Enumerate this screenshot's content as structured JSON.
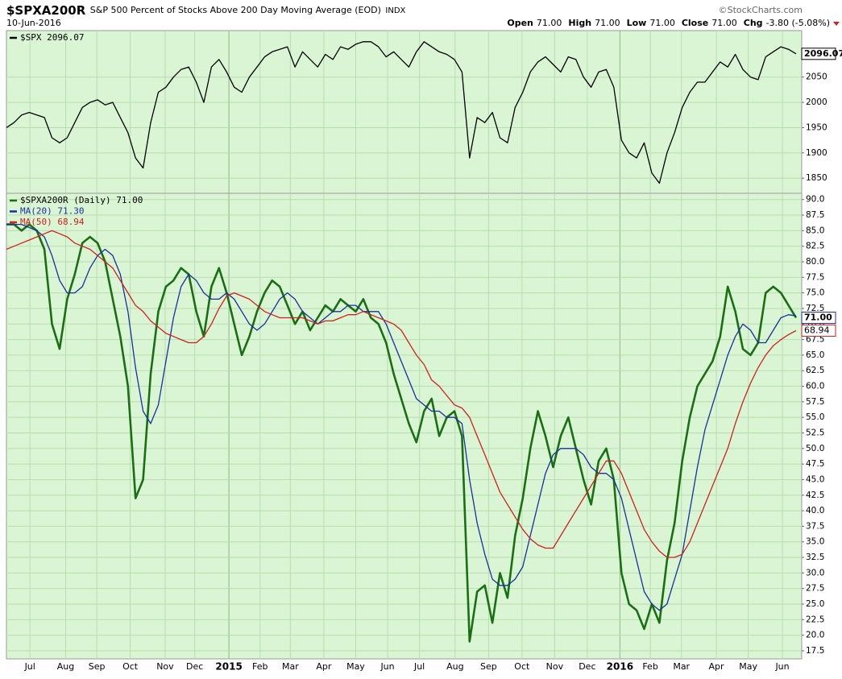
{
  "header": {
    "symbol": "$SPXA200R",
    "description": "S&P 500 Percent of Stocks Above 200 Day Moving Average (EOD)",
    "exchange": "INDX",
    "source": "©StockCharts.com",
    "date": "10-Jun-2016",
    "quote": [
      {
        "label": "Open",
        "value": "71.00"
      },
      {
        "label": "High",
        "value": "71.00"
      },
      {
        "label": "Low",
        "value": "71.00"
      },
      {
        "label": "Close",
        "value": "71.00"
      },
      {
        "label": "Chg",
        "value": "-3.80 (-5.08%)"
      }
    ]
  },
  "chart_data": [
    {
      "type": "line",
      "xlim": [
        0,
        104
      ],
      "ylim": [
        1820,
        2142
      ],
      "yticks": [
        1850,
        1900,
        1950,
        2000,
        2050
      ],
      "grid": true,
      "background": "#d9f5d3",
      "series": [
        {
          "name": "$SPX 2096.07",
          "color": "#000000",
          "end_label": "2096.07",
          "values": [
            1950,
            1960,
            1975,
            1980,
            1975,
            1970,
            1930,
            1920,
            1930,
            1960,
            1990,
            2000,
            2005,
            1995,
            2000,
            1970,
            1940,
            1890,
            1870,
            1960,
            2020,
            2030,
            2050,
            2065,
            2070,
            2040,
            2000,
            2070,
            2085,
            2060,
            2030,
            2020,
            2050,
            2070,
            2090,
            2100,
            2105,
            2110,
            2070,
            2100,
            2085,
            2070,
            2095,
            2085,
            2110,
            2105,
            2115,
            2120,
            2120,
            2110,
            2090,
            2100,
            2085,
            2070,
            2100,
            2120,
            2110,
            2100,
            2095,
            2085,
            2060,
            1890,
            1970,
            1960,
            1980,
            1930,
            1920,
            1990,
            2020,
            2060,
            2080,
            2090,
            2075,
            2060,
            2090,
            2085,
            2050,
            2030,
            2060,
            2065,
            2030,
            1925,
            1900,
            1890,
            1920,
            1860,
            1840,
            1900,
            1940,
            1990,
            2020,
            2040,
            2040,
            2060,
            2080,
            2070,
            2095,
            2065,
            2050,
            2045,
            2090,
            2100,
            2110,
            2105,
            2096.07
          ]
        }
      ]
    },
    {
      "type": "line",
      "xlim": [
        0,
        104
      ],
      "ylim": [
        16.2,
        91
      ],
      "grid": true,
      "background": "#d9f5d3",
      "yticks": [
        {
          "value": 17.5,
          "label": "17.5"
        },
        {
          "value": 20,
          "label": "20.0"
        },
        {
          "value": 22.5,
          "label": "22.5"
        },
        {
          "value": 25,
          "label": "25.0"
        },
        {
          "value": 27.5,
          "label": "27.5"
        },
        {
          "value": 30,
          "label": "30.0"
        },
        {
          "value": 32.5,
          "label": "32.5"
        },
        {
          "value": 35,
          "label": "35.0"
        },
        {
          "value": 37.5,
          "label": "37.5"
        },
        {
          "value": 40,
          "label": "40.0"
        },
        {
          "value": 42.5,
          "label": "42.5"
        },
        {
          "value": 45,
          "label": "45.0"
        },
        {
          "value": 47.5,
          "label": "47.5"
        },
        {
          "value": 50,
          "label": "50.0"
        },
        {
          "value": 52.5,
          "label": "52.5"
        },
        {
          "value": 55,
          "label": "55.0"
        },
        {
          "value": 57.5,
          "label": "57.5"
        },
        {
          "value": 60,
          "label": "60.0"
        },
        {
          "value": 62.5,
          "label": "62.5"
        },
        {
          "value": 65,
          "label": "65.0"
        },
        {
          "value": 67.5,
          "label": "67.5"
        },
        {
          "value": 70,
          "label": "70.0"
        },
        {
          "value": 72.5,
          "label": "72.5"
        },
        {
          "value": 75,
          "label": "75.0"
        },
        {
          "value": 77.5,
          "label": "77.5"
        },
        {
          "value": 80,
          "label": "80.0"
        },
        {
          "value": 82.5,
          "label": "82.5"
        },
        {
          "value": 85,
          "label": "85.0"
        },
        {
          "value": 87.5,
          "label": "87.5"
        },
        {
          "value": 90,
          "label": "90.0"
        }
      ],
      "xticks": [
        {
          "value": 3.1,
          "label": "Jul"
        },
        {
          "value": 7.8,
          "label": "Aug"
        },
        {
          "value": 11.9,
          "label": "Sep"
        },
        {
          "value": 16.3,
          "label": "Oct"
        },
        {
          "value": 20.9,
          "label": "Nov"
        },
        {
          "value": 24.8,
          "label": "Dec"
        },
        {
          "value": 29.3,
          "label": "2015"
        },
        {
          "value": 33.4,
          "label": "Feb"
        },
        {
          "value": 37.4,
          "label": "Mar"
        },
        {
          "value": 41.8,
          "label": "Apr"
        },
        {
          "value": 46.0,
          "label": "May"
        },
        {
          "value": 50.2,
          "label": "Jun"
        },
        {
          "value": 54.4,
          "label": "Jul"
        },
        {
          "value": 59.1,
          "label": "Aug"
        },
        {
          "value": 63.5,
          "label": "Sep"
        },
        {
          "value": 67.9,
          "label": "Oct"
        },
        {
          "value": 72.2,
          "label": "Nov"
        },
        {
          "value": 76.5,
          "label": "Dec"
        },
        {
          "value": 80.8,
          "label": "2016"
        },
        {
          "value": 84.8,
          "label": "Feb"
        },
        {
          "value": 88.9,
          "label": "Mar"
        },
        {
          "value": 93.5,
          "label": "Apr"
        },
        {
          "value": 97.7,
          "label": "May"
        },
        {
          "value": 102.2,
          "label": "Jun"
        }
      ],
      "series": [
        {
          "name": "$SPXA200R (Daily) 71.00",
          "color": "#1a6e14",
          "end_label": "71.00",
          "values": [
            86,
            86,
            85,
            86,
            85,
            82,
            70,
            66,
            74,
            78,
            83,
            84,
            83,
            80,
            74,
            68,
            60,
            42,
            45,
            62,
            72,
            76,
            77,
            79,
            78,
            72,
            68,
            76,
            79,
            75,
            70,
            65,
            68,
            72,
            75,
            77,
            76,
            73,
            70,
            72,
            69,
            71,
            73,
            72,
            74,
            73,
            72,
            74,
            71,
            70,
            67,
            62,
            58,
            54,
            51,
            56,
            58,
            52,
            55,
            56,
            52,
            19,
            27,
            28,
            22,
            30,
            26,
            36,
            42,
            50,
            56,
            52,
            47,
            52,
            55,
            50,
            45,
            41,
            48,
            50,
            45,
            30,
            25,
            24,
            21,
            25,
            22,
            32,
            38,
            48,
            55,
            60,
            62,
            64,
            68,
            76,
            72,
            66,
            65,
            67,
            75,
            76,
            75,
            73,
            71
          ]
        },
        {
          "name": "MA(20) 71.30",
          "color": "#1a2fa0",
          "values": [
            86,
            86,
            86,
            85.5,
            85,
            84,
            81,
            77,
            75,
            75,
            76,
            79,
            81,
            82,
            81,
            78,
            72,
            63,
            56,
            54,
            57,
            64,
            71,
            76,
            78,
            77,
            75,
            74,
            74,
            75,
            74,
            72,
            70,
            69,
            70,
            72,
            74,
            75,
            74,
            72,
            71,
            70,
            71,
            72,
            72,
            73,
            73,
            72,
            72,
            72,
            70,
            67,
            64,
            61,
            58,
            57,
            56,
            56,
            55,
            55,
            54,
            45,
            38,
            33,
            29,
            28,
            28,
            29,
            31,
            36,
            41,
            46,
            49,
            50,
            50,
            50,
            49,
            47,
            46,
            46,
            45,
            42,
            37,
            32,
            27,
            25,
            24,
            25,
            29,
            33,
            40,
            47,
            53,
            57,
            61,
            65,
            68,
            70,
            69,
            67,
            67,
            69,
            71,
            71.5,
            71.3
          ]
        },
        {
          "name": "MA(50) 68.94",
          "color": "#d02020",
          "end_label": "68.94",
          "values": [
            82,
            82.5,
            83,
            83.5,
            84,
            84.5,
            85,
            84.5,
            84,
            83,
            82.5,
            82,
            81,
            80,
            79,
            77,
            75,
            73,
            72,
            70.5,
            69.5,
            68.5,
            68,
            67.5,
            67,
            67,
            68,
            70,
            72.5,
            74.5,
            75,
            74.5,
            74,
            73,
            72,
            71.5,
            71,
            71,
            71,
            71,
            70.5,
            70,
            70.5,
            70.5,
            71,
            71.5,
            71.5,
            72,
            71.5,
            71,
            70.5,
            70,
            69,
            67,
            65,
            63.5,
            61,
            60,
            58.5,
            57,
            56.5,
            55,
            52,
            49,
            46,
            43,
            41,
            39,
            37,
            35.5,
            34.5,
            34,
            34,
            36,
            38,
            40,
            42,
            44,
            46,
            48,
            48,
            46,
            43,
            40,
            37,
            35,
            33.5,
            32.5,
            32.5,
            33,
            35,
            38,
            41,
            44,
            47,
            50,
            54,
            57.5,
            60.5,
            63,
            65,
            66.5,
            67.5,
            68.3,
            68.94
          ]
        }
      ]
    }
  ]
}
